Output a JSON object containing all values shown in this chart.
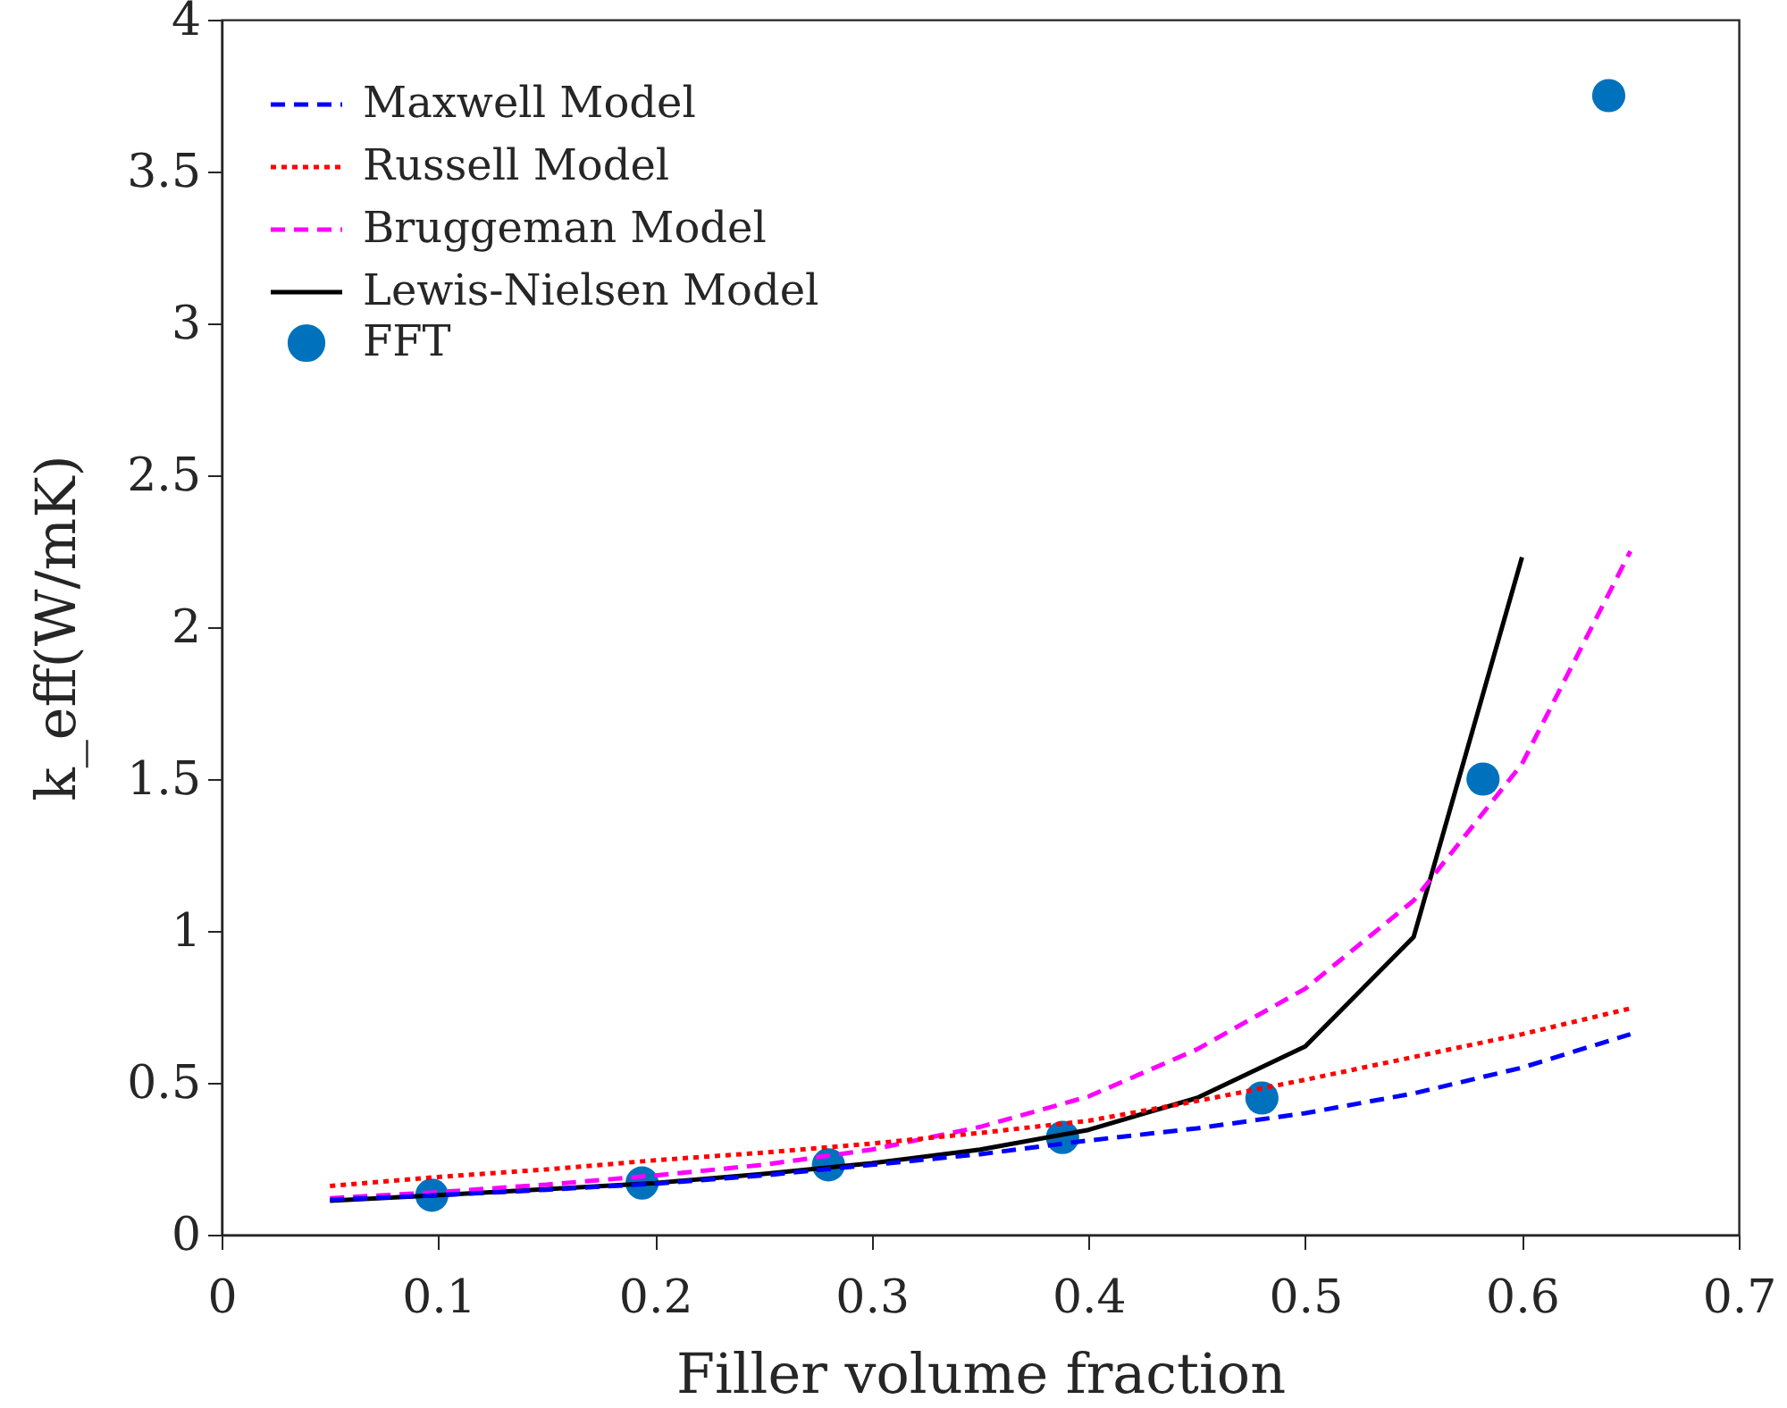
{
  "chart_data": {
    "type": "line",
    "xlabel": "Filler volume fraction",
    "ylabel": "k_eff(W/mK)",
    "xlim": [
      0,
      0.7
    ],
    "xticks": [
      0,
      0.1,
      0.2,
      0.3,
      0.4,
      0.5,
      0.6,
      0.7
    ],
    "ylim": [
      0,
      4
    ],
    "yticks": [
      0,
      0.5,
      1,
      1.5,
      2,
      2.5,
      3,
      3.5,
      4
    ],
    "grid": false,
    "legend": "top left",
    "series": [
      {
        "name": "Maxwell Model",
        "color": "#0000ff",
        "line_style": "dashed",
        "marker": "none",
        "x": [
          0.05,
          0.1,
          0.15,
          0.2,
          0.25,
          0.3,
          0.35,
          0.4,
          0.45,
          0.5,
          0.55,
          0.6,
          0.65
        ],
        "values": [
          0.115,
          0.13,
          0.148,
          0.168,
          0.195,
          0.23,
          0.265,
          0.31,
          0.35,
          0.4,
          0.465,
          0.55,
          0.66
        ]
      },
      {
        "name": "Russell Model",
        "color": "#ff0000",
        "line_style": "dotted",
        "marker": "none",
        "x": [
          0.05,
          0.1,
          0.15,
          0.2,
          0.25,
          0.3,
          0.35,
          0.4,
          0.45,
          0.5,
          0.55,
          0.6,
          0.65
        ],
        "values": [
          0.16,
          0.19,
          0.215,
          0.245,
          0.27,
          0.3,
          0.335,
          0.375,
          0.44,
          0.51,
          0.585,
          0.66,
          0.745
        ]
      },
      {
        "name": "Bruggeman Model",
        "color": "#ff00ff",
        "line_style": "dashed",
        "marker": "none",
        "x": [
          0.05,
          0.1,
          0.15,
          0.2,
          0.25,
          0.3,
          0.35,
          0.4,
          0.45,
          0.5,
          0.55,
          0.6,
          0.65
        ],
        "values": [
          0.12,
          0.14,
          0.165,
          0.195,
          0.23,
          0.28,
          0.355,
          0.455,
          0.61,
          0.81,
          1.1,
          1.55,
          2.25
        ]
      },
      {
        "name": "Lewis-Nielsen Model",
        "color": "#000000",
        "line_style": "solid",
        "marker": "none",
        "x": [
          0.05,
          0.1,
          0.15,
          0.2,
          0.25,
          0.3,
          0.35,
          0.4,
          0.45,
          0.5,
          0.55,
          0.6
        ],
        "values": [
          0.112,
          0.13,
          0.15,
          0.17,
          0.2,
          0.235,
          0.28,
          0.345,
          0.45,
          0.62,
          0.98,
          2.23
        ]
      },
      {
        "name": "FFT",
        "type": "scatter",
        "color": "#0072bd",
        "marker": "circle",
        "x": [
          0.097,
          0.194,
          0.28,
          0.388,
          0.48,
          0.582,
          0.64
        ],
        "values": [
          0.13,
          0.17,
          0.23,
          0.32,
          0.45,
          1.5,
          3.75
        ]
      }
    ]
  }
}
